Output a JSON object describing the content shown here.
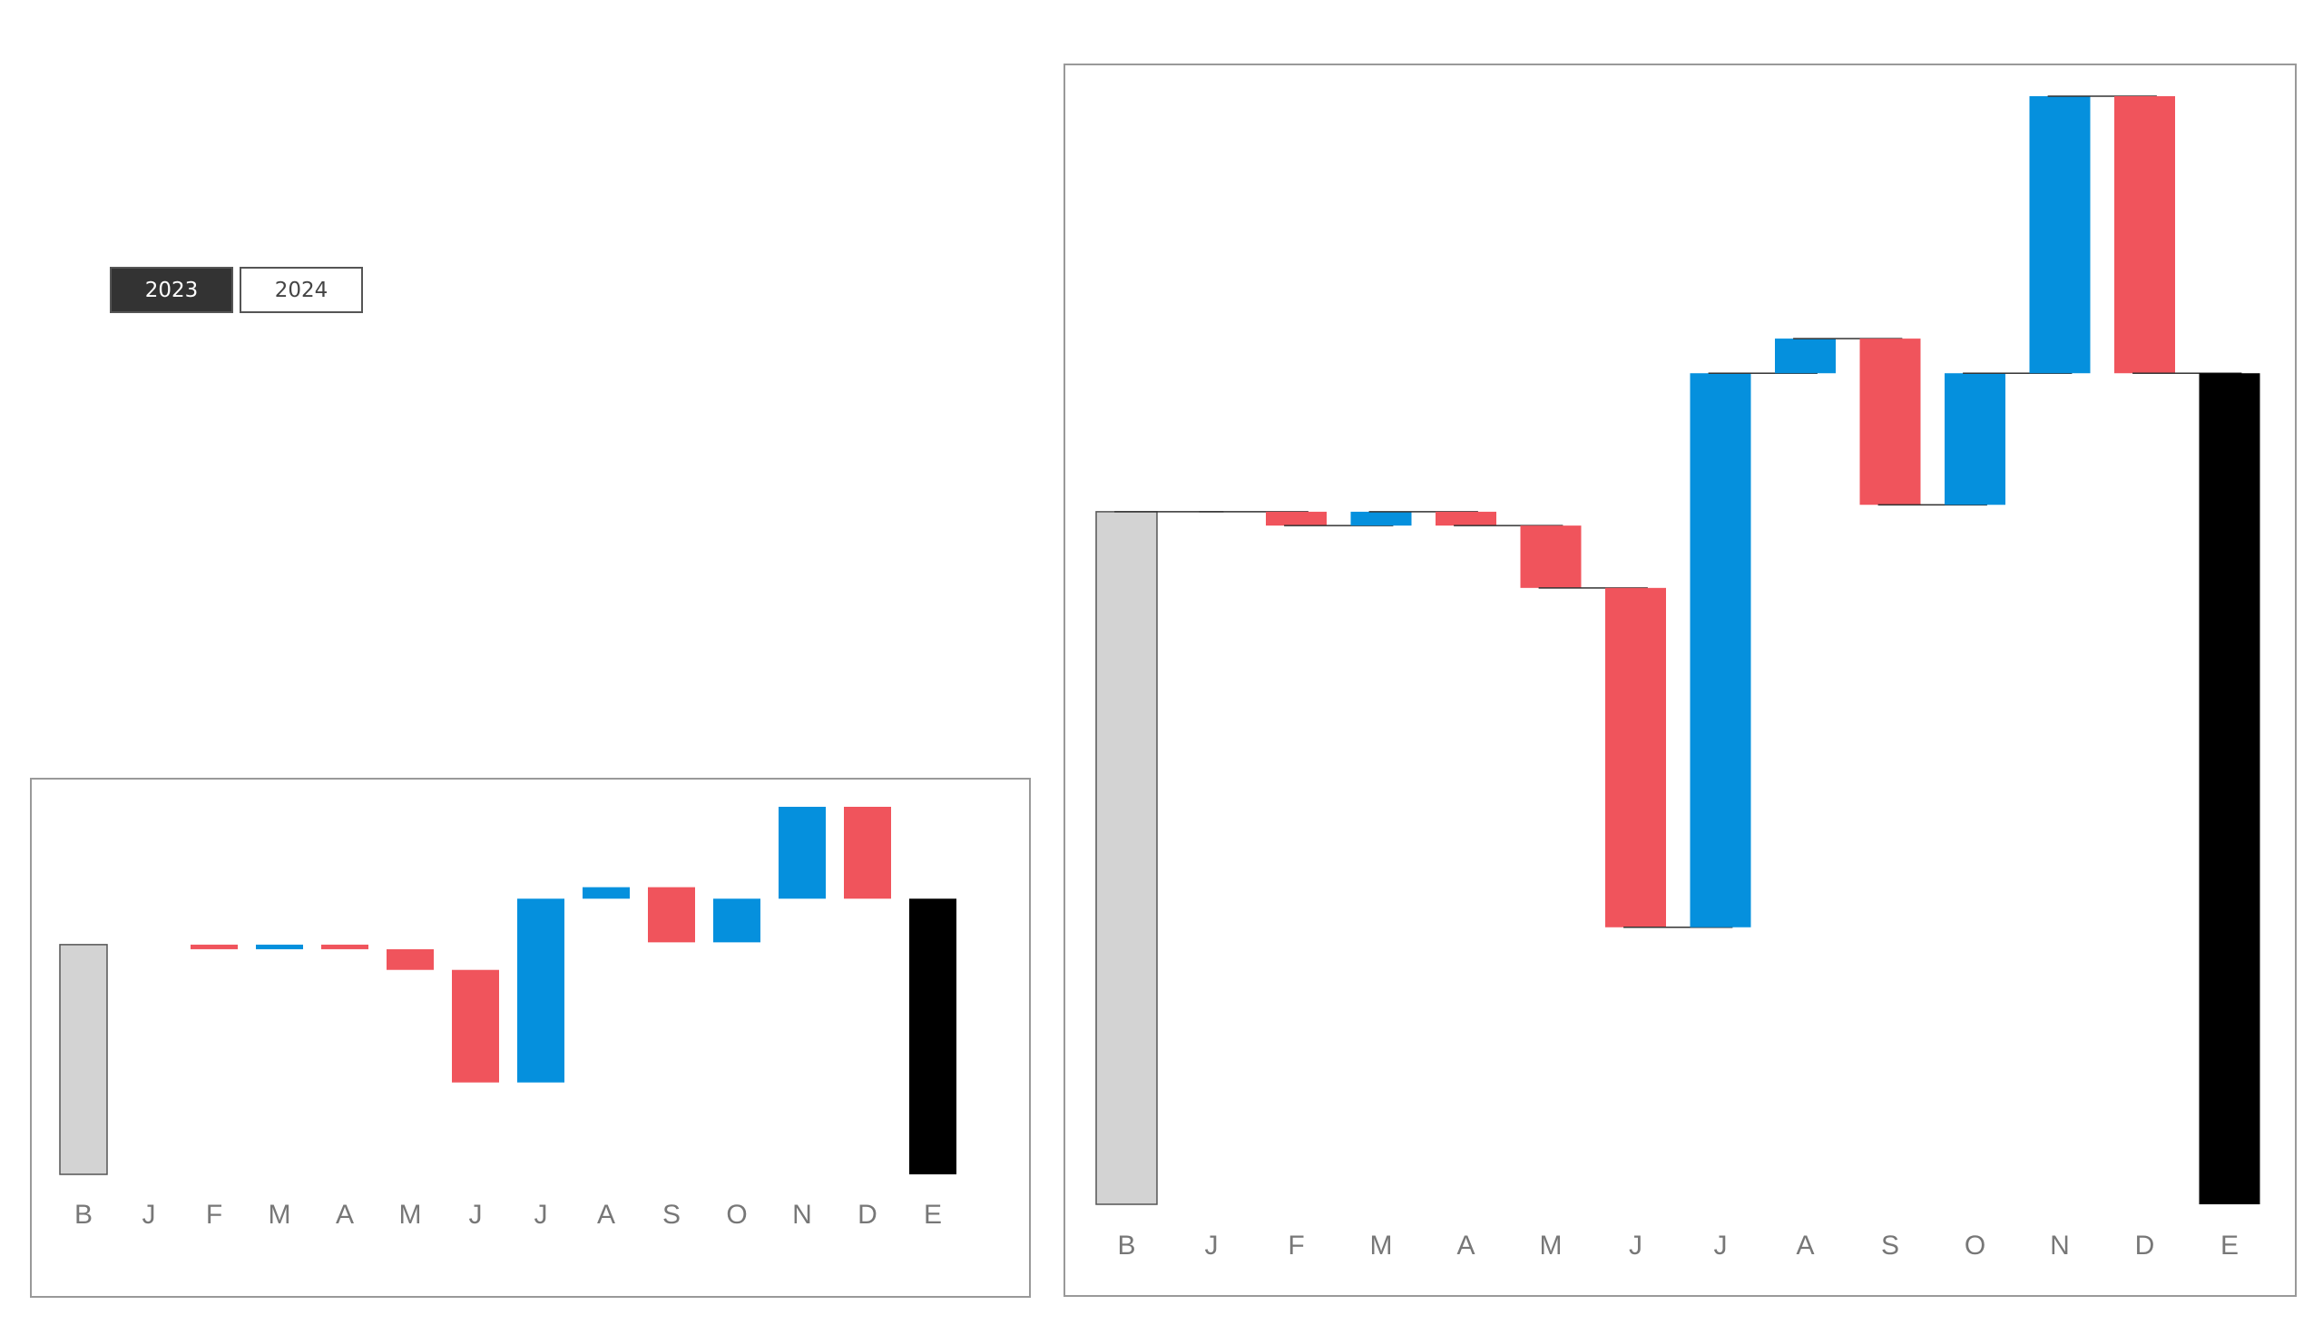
{
  "buttons": [
    {
      "label": "2023",
      "active": true
    },
    {
      "label": "2024",
      "active": false
    }
  ],
  "chart_data": [
    {
      "type": "waterfall",
      "categories": [
        "B",
        "J",
        "F",
        "M",
        "A",
        "M",
        "J",
        "J",
        "A",
        "S",
        "O",
        "N",
        "D",
        "E"
      ],
      "values": [
        100,
        0,
        -2,
        2,
        -2,
        -9,
        -49,
        80,
        5,
        -24,
        19,
        40,
        -40,
        120
      ],
      "increase_color": "#0590dd",
      "decrease_color": "#f0545c",
      "start_color": "#d3d3d3",
      "end_color": "#000000",
      "connectors": false
    },
    {
      "type": "waterfall",
      "categories": [
        "B",
        "J",
        "F",
        "M",
        "A",
        "M",
        "J",
        "J",
        "A",
        "S",
        "O",
        "N",
        "D",
        "E"
      ],
      "values": [
        100,
        0,
        -2,
        2,
        -2,
        -9,
        -49,
        80,
        5,
        -24,
        19,
        40,
        -40,
        120
      ],
      "increase_color": "#0590dd",
      "decrease_color": "#f0545c",
      "start_color": "#d3d3d3",
      "end_color": "#000000",
      "connectors": true
    }
  ]
}
